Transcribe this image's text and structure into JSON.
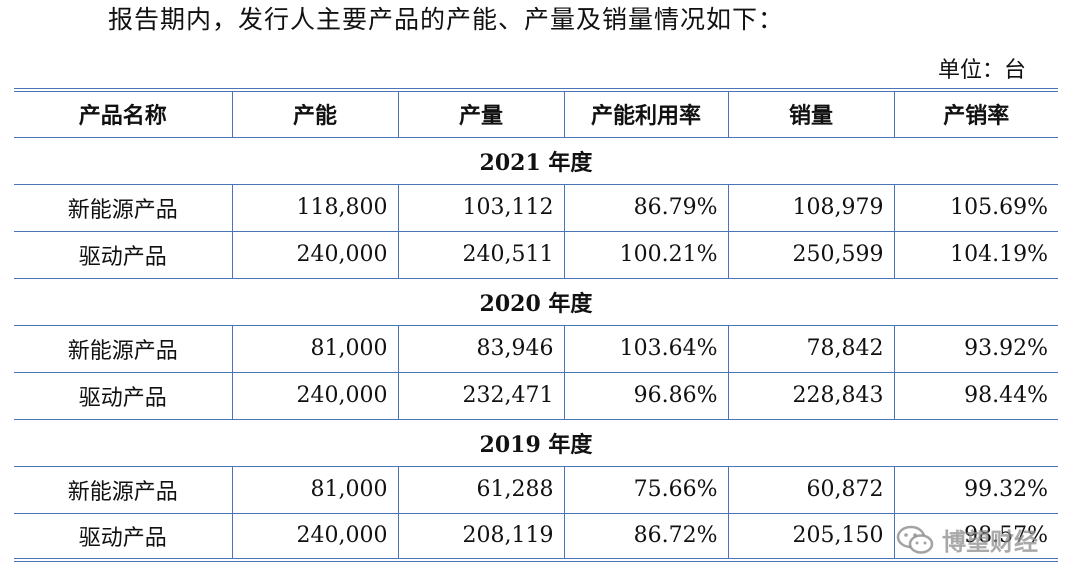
{
  "intro": "报告期内，发行人主要产品的产能、产量及销量情况如下：",
  "unit": "单位：台",
  "table": {
    "headers": [
      "产品名称",
      "产能",
      "产量",
      "产能利用率",
      "销量",
      "产销率"
    ],
    "groups": [
      {
        "year": "2021 年度",
        "rows": [
          [
            "新能源产品",
            "118,800",
            "103,112",
            "86.79%",
            "108,979",
            "105.69%"
          ],
          [
            "驱动产品",
            "240,000",
            "240,511",
            "100.21%",
            "250,599",
            "104.19%"
          ]
        ]
      },
      {
        "year": "2020 年度",
        "rows": [
          [
            "新能源产品",
            "81,000",
            "83,946",
            "103.64%",
            "78,842",
            "93.92%"
          ],
          [
            "驱动产品",
            "240,000",
            "232,471",
            "96.86%",
            "228,843",
            "98.44%"
          ]
        ]
      },
      {
        "year": "2019 年度",
        "rows": [
          [
            "新能源产品",
            "81,000",
            "61,288",
            "75.66%",
            "60,872",
            "99.32%"
          ],
          [
            "驱动产品",
            "240,000",
            "208,119",
            "86.72%",
            "205,150",
            "98.57%"
          ]
        ]
      }
    ]
  },
  "watermark": {
    "text": "博望财经",
    "icon": "wechat-icon"
  }
}
